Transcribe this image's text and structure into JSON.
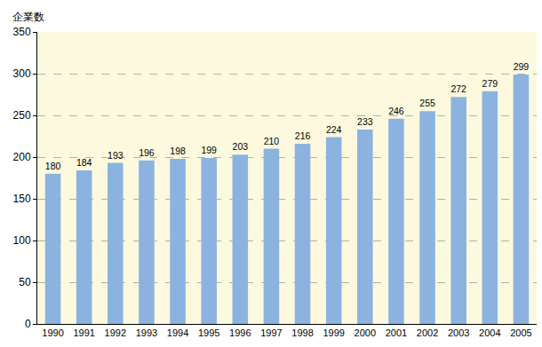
{
  "chart_data": {
    "type": "bar",
    "ylabel": "企業数",
    "categories": [
      "1990",
      "1991",
      "1992",
      "1993",
      "1994",
      "1995",
      "1996",
      "1997",
      "1998",
      "1999",
      "2000",
      "2001",
      "2002",
      "2003",
      "2004",
      "2005"
    ],
    "values": [
      180,
      184,
      193,
      196,
      198,
      199,
      203,
      210,
      216,
      224,
      233,
      246,
      255,
      272,
      279,
      299
    ],
    "color": "#8cb3e0",
    "ylim": [
      0,
      350
    ],
    "yticks": [
      0,
      50,
      100,
      150,
      200,
      250,
      300,
      350
    ],
    "grid": true,
    "data_labels": true
  }
}
